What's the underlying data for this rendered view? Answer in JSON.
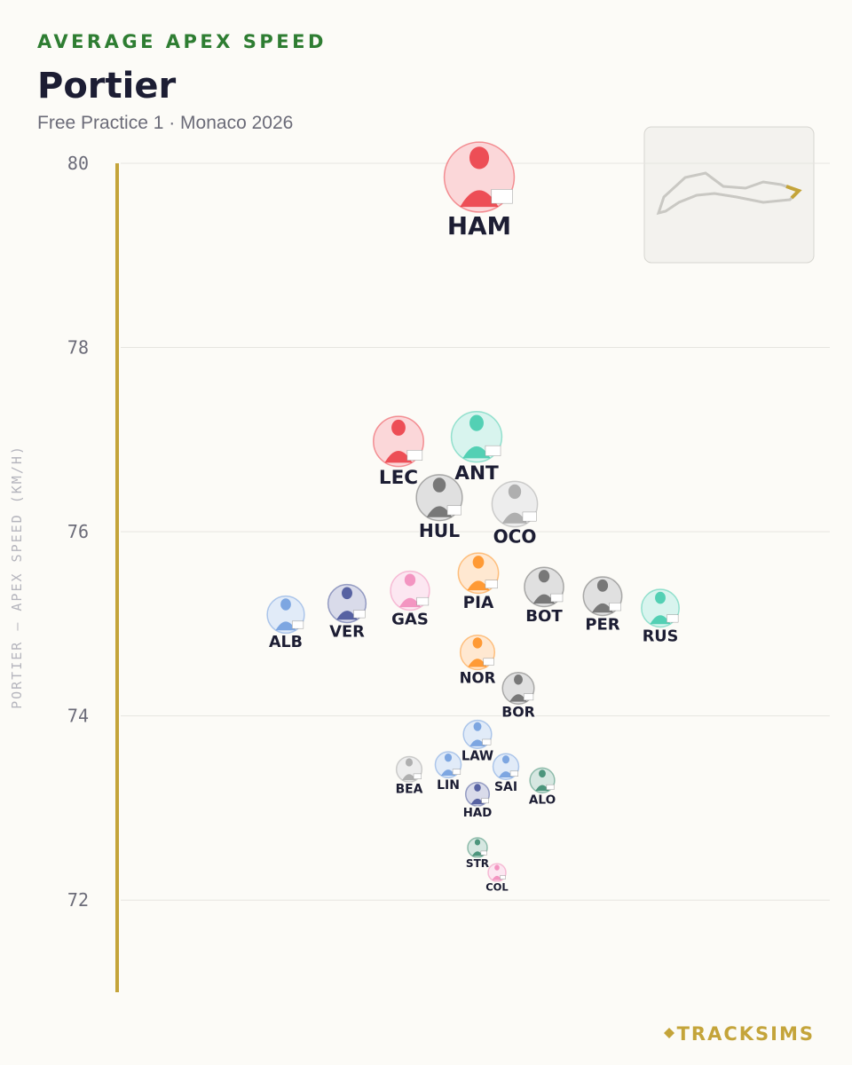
{
  "chart_data": {
    "type": "swarm",
    "kicker": "AVERAGE APEX SPEED",
    "title": "Portier",
    "subtitle": "Free Practice 1 · Monaco 2026",
    "y_label": "PORTIER — APEX SPEED (KM/H)",
    "brand": "TRACKSIMS",
    "categories": [
      "HAM",
      "ANT",
      "LEC",
      "HUL",
      "OCO",
      "PIA",
      "BOT",
      "GAS",
      "PER",
      "VER",
      "RUS",
      "ALB",
      "NOR",
      "BOR",
      "LAW",
      "LIN",
      "SAI",
      "BEA",
      "ALO",
      "HAD",
      "STR",
      "COL"
    ],
    "values": [
      79.85,
      77.03,
      76.98,
      76.37,
      76.3,
      75.55,
      75.4,
      75.36,
      75.3,
      75.22,
      75.17,
      75.1,
      74.69,
      74.3,
      73.8,
      73.47,
      73.45,
      73.42,
      73.3,
      73.15,
      72.57,
      72.3
    ],
    "colors": [
      "#e8202a",
      "#27c4a0",
      "#e8202a",
      "#555555",
      "#9a9a9a",
      "#ff8000",
      "#555555",
      "#f07ab0",
      "#555555",
      "#2b3a8a",
      "#27c4a0",
      "#5b8fd9",
      "#ff8000",
      "#555555",
      "#5b8fd9",
      "#5b8fd9",
      "#5b8fd9",
      "#9a9a9a",
      "#1e7a5a",
      "#2b3a8a",
      "#1e7a5a",
      "#f07ab0"
    ],
    "ylim": [
      71,
      80
    ],
    "yticks": [
      72,
      74,
      76,
      78,
      80
    ],
    "grid": true
  }
}
